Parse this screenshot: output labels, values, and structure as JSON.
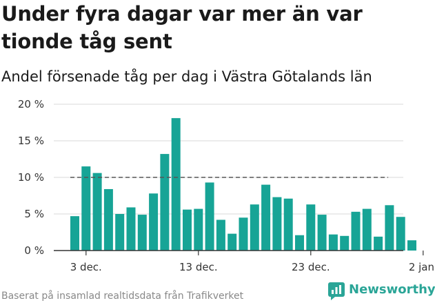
{
  "title": "Under fyra dagar var mer än var tionde tåg sent",
  "subtitle": "Andel försenade tåg per dag i Västra Götalands län",
  "footer": "Baserat på insamlad realtidsdata från Trafikverket",
  "brand": {
    "name": "Newsworthy",
    "icon": "newsworthy-logo-icon"
  },
  "colors": {
    "bar": "#17a496",
    "reference_line": "#555555",
    "grid": "#d9d9d9",
    "axis_text": "#333333",
    "brand": "#2aa597"
  },
  "chart_data": {
    "type": "bar",
    "title": "Under fyra dagar var mer än var tionde tåg sent",
    "subtitle": "Andel försenade tåg per dag i Västra Götalands län",
    "xlabel": "",
    "ylabel": "",
    "categories": [
      "2 dec.",
      "3 dec.",
      "4 dec.",
      "5 dec.",
      "6 dec.",
      "7 dec.",
      "8 dec.",
      "9 dec.",
      "10 dec.",
      "11 dec.",
      "12 dec.",
      "13 dec.",
      "14 dec.",
      "15 dec.",
      "16 dec.",
      "17 dec.",
      "18 dec.",
      "19 dec.",
      "20 dec.",
      "21 dec.",
      "22 dec.",
      "23 dec.",
      "24 dec.",
      "25 dec.",
      "26 dec.",
      "27 dec.",
      "28 dec.",
      "29 dec.",
      "30 dec.",
      "31 dec.",
      "1 jan."
    ],
    "values": [
      4.7,
      11.5,
      10.6,
      8.4,
      5.0,
      5.9,
      4.9,
      7.8,
      13.2,
      18.1,
      5.6,
      5.7,
      9.3,
      4.2,
      2.3,
      4.5,
      6.3,
      9.0,
      7.3,
      7.1,
      2.1,
      6.3,
      4.9,
      2.2,
      2.0,
      5.3,
      5.7,
      1.9,
      6.2,
      4.6,
      1.4
    ],
    "unit": "%",
    "ylim": [
      0,
      20
    ],
    "y_ticks": [
      0,
      5,
      10,
      15,
      20
    ],
    "y_tick_labels": [
      "0 %",
      "5 %",
      "10 %",
      "15 %",
      "20 %"
    ],
    "x_ticks": [
      "3 dec.",
      "13 dec.",
      "23 dec.",
      "2 jan."
    ],
    "x_tick_labels": [
      "3 dec.",
      "13 dec.",
      "23 dec.",
      "2 jan."
    ],
    "reference_line": {
      "value": 10,
      "style": "dashed"
    },
    "grid": true,
    "legend": "none"
  }
}
